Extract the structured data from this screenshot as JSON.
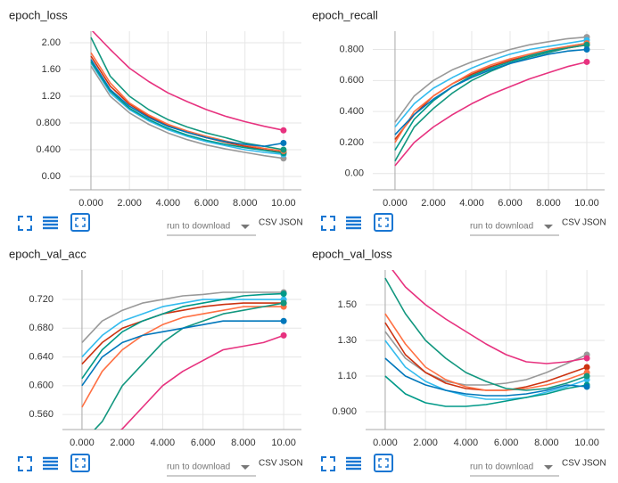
{
  "chart_data": [
    {
      "type": "line",
      "title": "epoch_loss",
      "x": [
        0,
        1,
        2,
        3,
        4,
        5,
        6,
        7,
        8,
        9,
        10
      ],
      "xlim": [
        -1.11,
        10.93
      ],
      "ylim": [
        -0.2,
        2.173
      ],
      "grid": true,
      "xticks": [
        {
          "value": 0,
          "label": "0.000"
        },
        {
          "value": 2,
          "label": "2.000"
        },
        {
          "value": 4,
          "label": "4.000"
        },
        {
          "value": 6,
          "label": "6.000"
        },
        {
          "value": 8,
          "label": "8.000"
        },
        {
          "value": 10,
          "label": "10.00"
        }
      ],
      "yticks": [
        {
          "value": 0,
          "label": "0.00"
        },
        {
          "value": 0.4,
          "label": "0.400"
        },
        {
          "value": 0.8,
          "label": "0.800"
        },
        {
          "value": 1.2,
          "label": "1.20"
        },
        {
          "value": 1.6,
          "label": "1.60"
        },
        {
          "value": 2,
          "label": "2.00"
        }
      ],
      "series": [
        {
          "color": "#999999",
          "values": [
            1.65,
            1.2,
            0.95,
            0.78,
            0.65,
            0.55,
            0.47,
            0.41,
            0.36,
            0.31,
            0.27
          ]
        },
        {
          "color": "#33bbee",
          "values": [
            1.7,
            1.25,
            1.0,
            0.83,
            0.7,
            0.6,
            0.52,
            0.46,
            0.4,
            0.36,
            0.33
          ]
        },
        {
          "color": "#cc3311",
          "values": [
            1.8,
            1.35,
            1.08,
            0.9,
            0.76,
            0.66,
            0.58,
            0.51,
            0.45,
            0.4,
            0.36
          ]
        },
        {
          "color": "#009988",
          "values": [
            1.72,
            1.28,
            1.02,
            0.85,
            0.72,
            0.62,
            0.54,
            0.48,
            0.43,
            0.39,
            0.35
          ]
        },
        {
          "color": "#ff7043",
          "values": [
            1.85,
            1.4,
            1.1,
            0.92,
            0.78,
            0.68,
            0.6,
            0.53,
            0.47,
            0.42,
            0.38
          ]
        },
        {
          "color": "#12977f",
          "values": [
            2.08,
            1.5,
            1.2,
            1.0,
            0.85,
            0.74,
            0.65,
            0.58,
            0.5,
            0.45,
            0.4
          ]
        },
        {
          "color": "#0077bb",
          "values": [
            1.75,
            1.3,
            1.05,
            0.88,
            0.75,
            0.66,
            0.58,
            0.52,
            0.48,
            0.45,
            0.5
          ]
        },
        {
          "color": "#e7327f",
          "values": [
            2.2,
            1.9,
            1.62,
            1.42,
            1.25,
            1.12,
            1.0,
            0.9,
            0.82,
            0.75,
            0.69
          ]
        }
      ]
    },
    {
      "type": "line",
      "title": "epoch_recall",
      "x": [
        0,
        1,
        2,
        3,
        4,
        5,
        6,
        7,
        8,
        9,
        10
      ],
      "xlim": [
        -1.16,
        10.93
      ],
      "ylim": [
        -0.105,
        0.918
      ],
      "grid": true,
      "xticks": [
        {
          "value": 0,
          "label": "0.000"
        },
        {
          "value": 2,
          "label": "2.000"
        },
        {
          "value": 4,
          "label": "4.000"
        },
        {
          "value": 6,
          "label": "6.000"
        },
        {
          "value": 8,
          "label": "8.000"
        },
        {
          "value": 10,
          "label": "10.00"
        }
      ],
      "yticks": [
        {
          "value": 0,
          "label": "0.00"
        },
        {
          "value": 0.2,
          "label": "0.200"
        },
        {
          "value": 0.4,
          "label": "0.400"
        },
        {
          "value": 0.6,
          "label": "0.600"
        },
        {
          "value": 0.8,
          "label": "0.800"
        }
      ],
      "series": [
        {
          "color": "#999999",
          "values": [
            0.33,
            0.5,
            0.6,
            0.67,
            0.72,
            0.76,
            0.8,
            0.83,
            0.85,
            0.87,
            0.88
          ]
        },
        {
          "color": "#33bbee",
          "values": [
            0.3,
            0.45,
            0.55,
            0.62,
            0.68,
            0.73,
            0.77,
            0.8,
            0.82,
            0.84,
            0.86
          ]
        },
        {
          "color": "#cc3311",
          "values": [
            0.22,
            0.38,
            0.5,
            0.58,
            0.64,
            0.69,
            0.73,
            0.76,
            0.79,
            0.81,
            0.83
          ]
        },
        {
          "color": "#009988",
          "values": [
            0.15,
            0.35,
            0.47,
            0.56,
            0.63,
            0.68,
            0.72,
            0.76,
            0.79,
            0.82,
            0.84
          ]
        },
        {
          "color": "#ff7043",
          "values": [
            0.2,
            0.4,
            0.5,
            0.58,
            0.65,
            0.7,
            0.74,
            0.77,
            0.8,
            0.82,
            0.84
          ]
        },
        {
          "color": "#12977f",
          "values": [
            0.08,
            0.3,
            0.42,
            0.52,
            0.6,
            0.66,
            0.71,
            0.75,
            0.78,
            0.81,
            0.83
          ]
        },
        {
          "color": "#0077bb",
          "values": [
            0.25,
            0.38,
            0.48,
            0.56,
            0.62,
            0.67,
            0.71,
            0.74,
            0.77,
            0.79,
            0.8
          ]
        },
        {
          "color": "#e7327f",
          "values": [
            0.05,
            0.2,
            0.3,
            0.38,
            0.45,
            0.51,
            0.56,
            0.61,
            0.65,
            0.69,
            0.72
          ]
        }
      ]
    },
    {
      "type": "line",
      "title": "epoch_val_acc",
      "x": [
        0,
        1,
        2,
        3,
        4,
        5,
        6,
        7,
        8,
        9,
        10
      ],
      "xlim": [
        -0.97,
        10.88
      ],
      "ylim": [
        0.539,
        0.761
      ],
      "grid": true,
      "xticks": [
        {
          "value": 0,
          "label": "0.000"
        },
        {
          "value": 2,
          "label": "2.000"
        },
        {
          "value": 4,
          "label": "4.000"
        },
        {
          "value": 6,
          "label": "6.000"
        },
        {
          "value": 8,
          "label": "8.000"
        },
        {
          "value": 10,
          "label": "10.00"
        }
      ],
      "yticks": [
        {
          "value": 0.56,
          "label": "0.560"
        },
        {
          "value": 0.6,
          "label": "0.600"
        },
        {
          "value": 0.64,
          "label": "0.640"
        },
        {
          "value": 0.68,
          "label": "0.680"
        },
        {
          "value": 0.72,
          "label": "0.720"
        }
      ],
      "series": [
        {
          "color": "#999999",
          "values": [
            0.66,
            0.69,
            0.705,
            0.715,
            0.72,
            0.725,
            0.727,
            0.73,
            0.73,
            0.73,
            0.73
          ]
        },
        {
          "color": "#33bbee",
          "values": [
            0.64,
            0.67,
            0.69,
            0.7,
            0.71,
            0.715,
            0.72,
            0.72,
            0.72,
            0.72,
            0.72
          ]
        },
        {
          "color": "#cc3311",
          "values": [
            0.63,
            0.66,
            0.68,
            0.69,
            0.7,
            0.705,
            0.71,
            0.713,
            0.715,
            0.715,
            0.715
          ]
        },
        {
          "color": "#009988",
          "values": [
            0.61,
            0.65,
            0.675,
            0.69,
            0.7,
            0.71,
            0.715,
            0.72,
            0.725,
            0.727,
            0.728
          ]
        },
        {
          "color": "#ff7043",
          "values": [
            0.57,
            0.62,
            0.65,
            0.67,
            0.685,
            0.695,
            0.7,
            0.705,
            0.71,
            0.71,
            0.71
          ]
        },
        {
          "color": "#12977f",
          "values": [
            0.52,
            0.55,
            0.6,
            0.63,
            0.66,
            0.68,
            0.69,
            0.7,
            0.705,
            0.71,
            0.715
          ]
        },
        {
          "color": "#0077bb",
          "values": [
            0.6,
            0.64,
            0.66,
            0.67,
            0.675,
            0.68,
            0.685,
            0.69,
            0.69,
            0.69,
            0.69
          ]
        },
        {
          "color": "#e7327f",
          "values": [
            0.5,
            0.52,
            0.54,
            0.57,
            0.6,
            0.62,
            0.635,
            0.65,
            0.655,
            0.66,
            0.67
          ]
        }
      ]
    },
    {
      "type": "line",
      "title": "epoch_val_loss",
      "x": [
        0,
        1,
        2,
        3,
        4,
        5,
        6,
        7,
        8,
        9,
        10
      ],
      "xlim": [
        -0.97,
        10.88
      ],
      "ylim": [
        0.8,
        1.695
      ],
      "grid": true,
      "xticks": [
        {
          "value": 0,
          "label": "0.000"
        },
        {
          "value": 2,
          "label": "2.000"
        },
        {
          "value": 4,
          "label": "4.000"
        },
        {
          "value": 6,
          "label": "6.000"
        },
        {
          "value": 8,
          "label": "8.000"
        },
        {
          "value": 10,
          "label": "10.00"
        }
      ],
      "yticks": [
        {
          "value": 0.9,
          "label": "0.900"
        },
        {
          "value": 1.1,
          "label": "1.10"
        },
        {
          "value": 1.3,
          "label": "1.30"
        },
        {
          "value": 1.5,
          "label": "1.50"
        }
      ],
      "series": [
        {
          "color": "#999999",
          "values": [
            1.35,
            1.2,
            1.12,
            1.07,
            1.05,
            1.05,
            1.06,
            1.08,
            1.12,
            1.17,
            1.22
          ]
        },
        {
          "color": "#33bbee",
          "values": [
            1.3,
            1.15,
            1.07,
            1.02,
            0.99,
            0.97,
            0.97,
            0.98,
            1.01,
            1.04,
            1.08
          ]
        },
        {
          "color": "#cc3311",
          "values": [
            1.4,
            1.22,
            1.12,
            1.06,
            1.03,
            1.02,
            1.02,
            1.04,
            1.07,
            1.11,
            1.15
          ]
        },
        {
          "color": "#009988",
          "values": [
            1.1,
            1.0,
            0.95,
            0.93,
            0.93,
            0.94,
            0.96,
            0.98,
            1.0,
            1.03,
            1.05
          ]
        },
        {
          "color": "#ff7043",
          "values": [
            1.45,
            1.28,
            1.15,
            1.08,
            1.04,
            1.02,
            1.02,
            1.03,
            1.05,
            1.08,
            1.12
          ]
        },
        {
          "color": "#12977f",
          "values": [
            1.65,
            1.45,
            1.3,
            1.2,
            1.12,
            1.07,
            1.03,
            1.02,
            1.03,
            1.06,
            1.1
          ]
        },
        {
          "color": "#0077bb",
          "values": [
            1.2,
            1.1,
            1.05,
            1.02,
            1.0,
            0.99,
            0.99,
            1.0,
            1.02,
            1.05,
            1.04
          ]
        },
        {
          "color": "#e7327f",
          "values": [
            1.75,
            1.6,
            1.5,
            1.42,
            1.35,
            1.28,
            1.22,
            1.18,
            1.17,
            1.18,
            1.2
          ]
        }
      ]
    }
  ],
  "controls": [
    {
      "dropdown": "run to download",
      "formats": [
        "CSV",
        "JSON"
      ]
    },
    {
      "dropdown": "run to download",
      "formats": [
        "CSV",
        "JSON"
      ]
    },
    {
      "dropdown": "run to download",
      "formats": [
        "CSV",
        "JSON"
      ]
    },
    {
      "dropdown": "run to download",
      "formats": [
        "CSV",
        "JSON"
      ]
    }
  ]
}
